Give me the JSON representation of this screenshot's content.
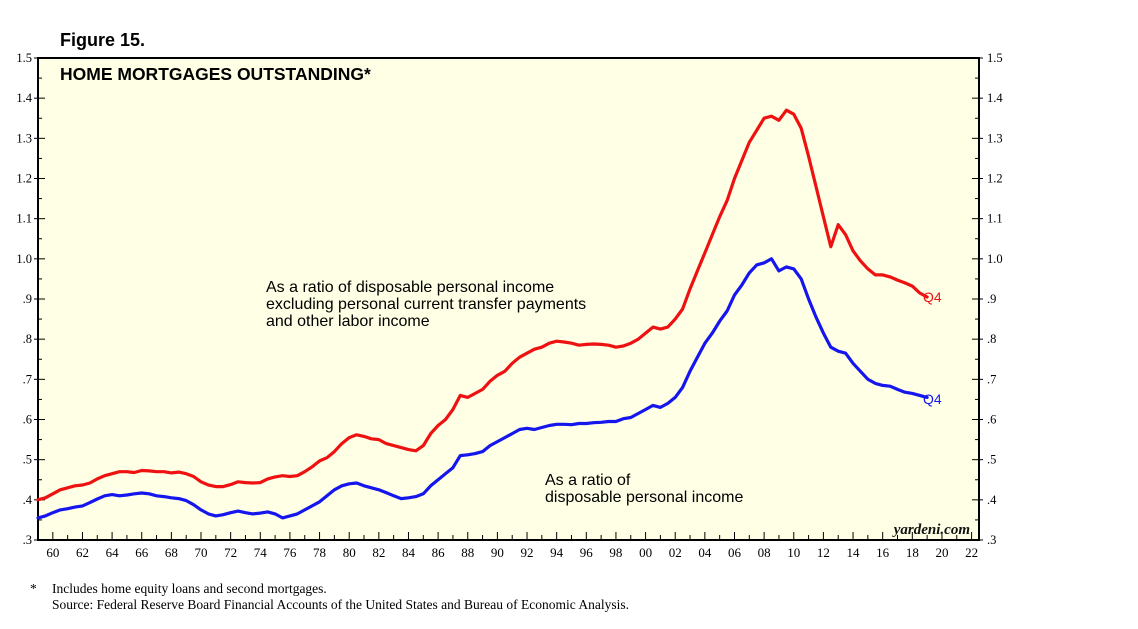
{
  "figure_label": "Figure 15.",
  "footnote": {
    "marker": "*",
    "note": "Includes home equity loans and second mortgages.",
    "source": "Source: Federal Reserve Board Financial Accounts of the United States and Bureau of Economic Analysis."
  },
  "colors": {
    "background": "#ffffe6",
    "red_series": "#ee1111",
    "blue_series": "#1515ee",
    "frame": "#000000"
  },
  "chart_data": {
    "type": "line",
    "title": "HOME MORTGAGES OUTSTANDING*",
    "watermark": "yardeni.com",
    "x_range": [
      1959,
      2022.5
    ],
    "ylim": [
      0.3,
      1.5
    ],
    "y_ticks": [
      0.3,
      0.4,
      0.5,
      0.6,
      0.7,
      0.8,
      0.9,
      1.0,
      1.1,
      1.2,
      1.3,
      1.4,
      1.5
    ],
    "y_tick_labels_left": [
      ".3",
      ".4",
      ".5",
      ".6",
      ".7",
      ".8",
      ".9",
      "1.0",
      "1.1",
      "1.2",
      "1.3",
      "1.4",
      "1.5"
    ],
    "y_tick_labels_right": [
      ".3",
      ".4",
      ".5",
      ".6",
      ".7",
      ".8",
      ".9",
      "1.0",
      "1.1",
      "1.2",
      "1.3",
      "1.4",
      "1.5"
    ],
    "x_tick_years": [
      1960,
      1962,
      1964,
      1966,
      1968,
      1970,
      1972,
      1974,
      1976,
      1978,
      1980,
      1982,
      1984,
      1986,
      1988,
      1990,
      1992,
      1994,
      1996,
      1998,
      2000,
      2002,
      2004,
      2006,
      2008,
      2010,
      2012,
      2014,
      2016,
      2018,
      2020,
      2022
    ],
    "x_tick_labels": [
      "60",
      "62",
      "64",
      "66",
      "68",
      "70",
      "72",
      "74",
      "76",
      "78",
      "80",
      "82",
      "84",
      "86",
      "88",
      "90",
      "92",
      "94",
      "96",
      "98",
      "00",
      "02",
      "04",
      "06",
      "08",
      "10",
      "12",
      "14",
      "16",
      "18",
      "20",
      "22"
    ],
    "series": [
      {
        "name": "As a ratio of disposable personal income excluding personal current transfer payments and other labor income",
        "label_lines": [
          "As a ratio of disposable personal income",
          "excluding personal current transfer payments",
          "and other labor income"
        ],
        "end_label": "Q4",
        "color": "#ee1111",
        "points": [
          [
            1959.0,
            0.4
          ],
          [
            1959.5,
            0.405
          ],
          [
            1960.0,
            0.415
          ],
          [
            1960.5,
            0.425
          ],
          [
            1961.0,
            0.43
          ],
          [
            1961.5,
            0.435
          ],
          [
            1962.0,
            0.437
          ],
          [
            1962.5,
            0.442
          ],
          [
            1963.0,
            0.452
          ],
          [
            1963.5,
            0.46
          ],
          [
            1964.0,
            0.465
          ],
          [
            1964.5,
            0.47
          ],
          [
            1965.0,
            0.47
          ],
          [
            1965.5,
            0.468
          ],
          [
            1966.0,
            0.473
          ],
          [
            1966.5,
            0.472
          ],
          [
            1967.0,
            0.47
          ],
          [
            1967.5,
            0.47
          ],
          [
            1968.0,
            0.467
          ],
          [
            1968.5,
            0.469
          ],
          [
            1969.0,
            0.465
          ],
          [
            1969.5,
            0.458
          ],
          [
            1970.0,
            0.445
          ],
          [
            1970.5,
            0.437
          ],
          [
            1971.0,
            0.433
          ],
          [
            1971.5,
            0.433
          ],
          [
            1972.0,
            0.438
          ],
          [
            1972.5,
            0.445
          ],
          [
            1973.0,
            0.443
          ],
          [
            1973.5,
            0.442
          ],
          [
            1974.0,
            0.443
          ],
          [
            1974.5,
            0.452
          ],
          [
            1975.0,
            0.457
          ],
          [
            1975.5,
            0.46
          ],
          [
            1976.0,
            0.458
          ],
          [
            1976.5,
            0.46
          ],
          [
            1977.0,
            0.47
          ],
          [
            1977.5,
            0.482
          ],
          [
            1978.0,
            0.497
          ],
          [
            1978.5,
            0.505
          ],
          [
            1979.0,
            0.52
          ],
          [
            1979.5,
            0.54
          ],
          [
            1980.0,
            0.555
          ],
          [
            1980.5,
            0.562
          ],
          [
            1981.0,
            0.558
          ],
          [
            1981.5,
            0.552
          ],
          [
            1982.0,
            0.55
          ],
          [
            1982.5,
            0.54
          ],
          [
            1983.0,
            0.535
          ],
          [
            1983.5,
            0.53
          ],
          [
            1984.0,
            0.525
          ],
          [
            1984.5,
            0.522
          ],
          [
            1985.0,
            0.535
          ],
          [
            1985.5,
            0.565
          ],
          [
            1986.0,
            0.585
          ],
          [
            1986.5,
            0.6
          ],
          [
            1987.0,
            0.625
          ],
          [
            1987.5,
            0.66
          ],
          [
            1988.0,
            0.655
          ],
          [
            1988.5,
            0.665
          ],
          [
            1989.0,
            0.675
          ],
          [
            1989.5,
            0.695
          ],
          [
            1990.0,
            0.71
          ],
          [
            1990.5,
            0.72
          ],
          [
            1991.0,
            0.74
          ],
          [
            1991.5,
            0.755
          ],
          [
            1992.0,
            0.765
          ],
          [
            1992.5,
            0.775
          ],
          [
            1993.0,
            0.78
          ],
          [
            1993.5,
            0.79
          ],
          [
            1994.0,
            0.795
          ],
          [
            1994.5,
            0.793
          ],
          [
            1995.0,
            0.79
          ],
          [
            1995.5,
            0.785
          ],
          [
            1996.0,
            0.787
          ],
          [
            1996.5,
            0.788
          ],
          [
            1997.0,
            0.787
          ],
          [
            1997.5,
            0.785
          ],
          [
            1998.0,
            0.78
          ],
          [
            1998.5,
            0.783
          ],
          [
            1999.0,
            0.79
          ],
          [
            1999.5,
            0.8
          ],
          [
            2000.0,
            0.815
          ],
          [
            2000.5,
            0.83
          ],
          [
            2001.0,
            0.825
          ],
          [
            2001.5,
            0.83
          ],
          [
            2002.0,
            0.85
          ],
          [
            2002.5,
            0.875
          ],
          [
            2003.0,
            0.925
          ],
          [
            2003.5,
            0.97
          ],
          [
            2004.0,
            1.015
          ],
          [
            2004.5,
            1.06
          ],
          [
            2005.0,
            1.105
          ],
          [
            2005.5,
            1.145
          ],
          [
            2006.0,
            1.2
          ],
          [
            2006.5,
            1.245
          ],
          [
            2007.0,
            1.29
          ],
          [
            2007.5,
            1.32
          ],
          [
            2008.0,
            1.35
          ],
          [
            2008.5,
            1.355
          ],
          [
            2009.0,
            1.345
          ],
          [
            2009.5,
            1.37
          ],
          [
            2010.0,
            1.36
          ],
          [
            2010.5,
            1.325
          ],
          [
            2011.0,
            1.255
          ],
          [
            2011.5,
            1.18
          ],
          [
            2012.0,
            1.105
          ],
          [
            2012.5,
            1.03
          ],
          [
            2013.0,
            1.085
          ],
          [
            2013.5,
            1.06
          ],
          [
            2014.0,
            1.02
          ],
          [
            2014.5,
            0.995
          ],
          [
            2015.0,
            0.975
          ],
          [
            2015.5,
            0.96
          ],
          [
            2016.0,
            0.96
          ],
          [
            2016.5,
            0.955
          ],
          [
            2017.0,
            0.947
          ],
          [
            2017.5,
            0.94
          ],
          [
            2018.0,
            0.932
          ],
          [
            2018.5,
            0.915
          ],
          [
            2019.0,
            0.905
          ]
        ]
      },
      {
        "name": "As a ratio of disposable personal income",
        "label_lines": [
          "As a ratio of",
          "disposable personal income"
        ],
        "end_label": "Q4",
        "color": "#1515ee",
        "points": [
          [
            1959.0,
            0.355
          ],
          [
            1959.5,
            0.36
          ],
          [
            1960.0,
            0.368
          ],
          [
            1960.5,
            0.375
          ],
          [
            1961.0,
            0.378
          ],
          [
            1961.5,
            0.382
          ],
          [
            1962.0,
            0.385
          ],
          [
            1962.5,
            0.393
          ],
          [
            1963.0,
            0.402
          ],
          [
            1963.5,
            0.41
          ],
          [
            1964.0,
            0.413
          ],
          [
            1964.5,
            0.41
          ],
          [
            1965.0,
            0.412
          ],
          [
            1965.5,
            0.415
          ],
          [
            1966.0,
            0.417
          ],
          [
            1966.5,
            0.415
          ],
          [
            1967.0,
            0.41
          ],
          [
            1967.5,
            0.408
          ],
          [
            1968.0,
            0.405
          ],
          [
            1968.5,
            0.403
          ],
          [
            1969.0,
            0.398
          ],
          [
            1969.5,
            0.388
          ],
          [
            1970.0,
            0.375
          ],
          [
            1970.5,
            0.365
          ],
          [
            1971.0,
            0.36
          ],
          [
            1971.5,
            0.363
          ],
          [
            1972.0,
            0.368
          ],
          [
            1972.5,
            0.372
          ],
          [
            1973.0,
            0.368
          ],
          [
            1973.5,
            0.365
          ],
          [
            1974.0,
            0.367
          ],
          [
            1974.5,
            0.37
          ],
          [
            1975.0,
            0.365
          ],
          [
            1975.5,
            0.355
          ],
          [
            1976.0,
            0.36
          ],
          [
            1976.5,
            0.365
          ],
          [
            1977.0,
            0.375
          ],
          [
            1977.5,
            0.385
          ],
          [
            1978.0,
            0.395
          ],
          [
            1978.5,
            0.41
          ],
          [
            1979.0,
            0.425
          ],
          [
            1979.5,
            0.435
          ],
          [
            1980.0,
            0.44
          ],
          [
            1980.5,
            0.442
          ],
          [
            1981.0,
            0.435
          ],
          [
            1981.5,
            0.43
          ],
          [
            1982.0,
            0.425
          ],
          [
            1982.5,
            0.418
          ],
          [
            1983.0,
            0.41
          ],
          [
            1983.5,
            0.403
          ],
          [
            1984.0,
            0.405
          ],
          [
            1984.5,
            0.408
          ],
          [
            1985.0,
            0.415
          ],
          [
            1985.5,
            0.435
          ],
          [
            1986.0,
            0.45
          ],
          [
            1986.5,
            0.465
          ],
          [
            1987.0,
            0.48
          ],
          [
            1987.5,
            0.51
          ],
          [
            1988.0,
            0.512
          ],
          [
            1988.5,
            0.515
          ],
          [
            1989.0,
            0.52
          ],
          [
            1989.5,
            0.535
          ],
          [
            1990.0,
            0.545
          ],
          [
            1990.5,
            0.555
          ],
          [
            1991.0,
            0.565
          ],
          [
            1991.5,
            0.575
          ],
          [
            1992.0,
            0.578
          ],
          [
            1992.5,
            0.575
          ],
          [
            1993.0,
            0.58
          ],
          [
            1993.5,
            0.585
          ],
          [
            1994.0,
            0.588
          ],
          [
            1994.5,
            0.588
          ],
          [
            1995.0,
            0.587
          ],
          [
            1995.5,
            0.59
          ],
          [
            1996.0,
            0.59
          ],
          [
            1996.5,
            0.592
          ],
          [
            1997.0,
            0.593
          ],
          [
            1997.5,
            0.595
          ],
          [
            1998.0,
            0.595
          ],
          [
            1998.5,
            0.602
          ],
          [
            1999.0,
            0.605
          ],
          [
            1999.5,
            0.615
          ],
          [
            2000.0,
            0.625
          ],
          [
            2000.5,
            0.635
          ],
          [
            2001.0,
            0.63
          ],
          [
            2001.5,
            0.64
          ],
          [
            2002.0,
            0.655
          ],
          [
            2002.5,
            0.68
          ],
          [
            2003.0,
            0.72
          ],
          [
            2003.5,
            0.755
          ],
          [
            2004.0,
            0.79
          ],
          [
            2004.5,
            0.815
          ],
          [
            2005.0,
            0.845
          ],
          [
            2005.5,
            0.87
          ],
          [
            2006.0,
            0.91
          ],
          [
            2006.5,
            0.935
          ],
          [
            2007.0,
            0.965
          ],
          [
            2007.5,
            0.985
          ],
          [
            2008.0,
            0.99
          ],
          [
            2008.5,
            1.0
          ],
          [
            2009.0,
            0.97
          ],
          [
            2009.5,
            0.98
          ],
          [
            2010.0,
            0.975
          ],
          [
            2010.5,
            0.95
          ],
          [
            2011.0,
            0.9
          ],
          [
            2011.5,
            0.855
          ],
          [
            2012.0,
            0.815
          ],
          [
            2012.5,
            0.78
          ],
          [
            2013.0,
            0.77
          ],
          [
            2013.5,
            0.765
          ],
          [
            2014.0,
            0.74
          ],
          [
            2014.5,
            0.72
          ],
          [
            2015.0,
            0.7
          ],
          [
            2015.5,
            0.69
          ],
          [
            2016.0,
            0.685
          ],
          [
            2016.5,
            0.683
          ],
          [
            2017.0,
            0.675
          ],
          [
            2017.5,
            0.668
          ],
          [
            2018.0,
            0.665
          ],
          [
            2018.5,
            0.66
          ],
          [
            2019.0,
            0.655
          ]
        ]
      }
    ]
  }
}
